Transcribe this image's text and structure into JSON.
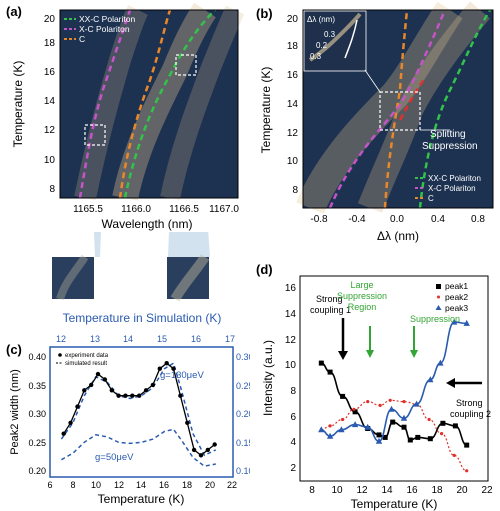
{
  "panel_a": {
    "letter": "(a)",
    "ylabel": "Temperature (K)",
    "xlabel": "Wavelength (nm)",
    "xticks": [
      "1165.5",
      "1166.0",
      "1166.5",
      "1167.0"
    ],
    "yticks": [
      "8",
      "10",
      "12",
      "14",
      "16",
      "18",
      "20"
    ],
    "legend": [
      {
        "label": "XX-C Polariton",
        "color": "#33c24a"
      },
      {
        "label": "X-C Polariton",
        "color": "#c454c8"
      },
      {
        "label": "C",
        "color": "#e8882a"
      }
    ]
  },
  "panel_b": {
    "letter": "(b)",
    "ylabel": "Temperature (K)",
    "xlabel": "Δλ (nm)",
    "xticks": [
      "-0.8",
      "-0.4",
      "0.0",
      "0.4",
      "0.8"
    ],
    "yticks": [
      "8",
      "10",
      "12",
      "14",
      "16",
      "18",
      "20"
    ],
    "inset_label": "Δλ (nm)",
    "inset_values": [
      "0.3",
      "0.2",
      "0.3"
    ],
    "annotation": "Splitting Suppression",
    "legend": [
      {
        "label": "XX-C Polariton",
        "color": "#33c24a"
      },
      {
        "label": "X-C Polariton",
        "color": "#c454c8"
      },
      {
        "label": "C",
        "color": "#e8882a"
      }
    ]
  },
  "panel_c": {
    "letter": "(c)",
    "top_axis_title": "Temperature in Simulation (K)",
    "top_ticks": [
      "12",
      "13",
      "14",
      "15",
      "16",
      "17"
    ],
    "ylabel": "Peak2 width (nm)",
    "xlabel": "Temperature (K)",
    "xticks": [
      "6",
      "8",
      "10",
      "12",
      "14",
      "16",
      "18",
      "20",
      "22"
    ],
    "yticks_left": [
      "0.20",
      "0.25",
      "0.30",
      "0.35",
      "0.40"
    ],
    "yticks_right": [
      "0.10",
      "0.15",
      "0.20",
      "0.25",
      "0.30"
    ],
    "legend": [
      "experiment data",
      "simulated result"
    ],
    "g_high": "g=130μeV",
    "g_low": "g=50μeV"
  },
  "panel_d": {
    "letter": "(d)",
    "ylabel": "Intensity (a.u.)",
    "xlabel": "Temperature (K)",
    "xticks": [
      "8",
      "10",
      "12",
      "14",
      "16",
      "18",
      "20",
      "22"
    ],
    "yticks": [
      "2",
      "4",
      "6",
      "8",
      "10",
      "12",
      "14",
      "16"
    ],
    "legend": [
      {
        "label": "peak1",
        "color": "#000000"
      },
      {
        "label": "peak2",
        "color": "#e0302a"
      },
      {
        "label": "peak3",
        "color": "#2a5bb0"
      }
    ],
    "annotations": {
      "strong1": [
        "Strong",
        "coupling 1"
      ],
      "large": [
        "Large",
        "Suppression",
        "Region"
      ],
      "suppression": "Suppression",
      "strong2": [
        "Strong",
        "coupling 2"
      ]
    }
  },
  "chart_data": [
    {
      "type": "line",
      "panel": "c",
      "xlabel": "Temperature (K)",
      "ylabel": "Peak2 width (nm)",
      "xlim": [
        6,
        22
      ],
      "ylim": [
        0.18,
        0.42
      ],
      "series": [
        {
          "name": "experiment data",
          "x": [
            7.2,
            7.8,
            8.4,
            9.0,
            9.6,
            10.2,
            10.8,
            11.4,
            12.0,
            12.6,
            13.2,
            13.8,
            14.4,
            15.0,
            15.6,
            16.2,
            16.8,
            17.4,
            18.0,
            18.6,
            19.2,
            19.8,
            20.4
          ],
          "y": [
            0.26,
            0.28,
            0.31,
            0.34,
            0.35,
            0.37,
            0.36,
            0.34,
            0.33,
            0.33,
            0.33,
            0.33,
            0.34,
            0.35,
            0.38,
            0.39,
            0.38,
            0.33,
            0.28,
            0.23,
            0.22,
            0.23,
            0.24
          ]
        },
        {
          "name": "simulated result",
          "x": [
            7,
            8,
            9,
            10,
            11,
            12,
            13,
            14,
            15,
            16,
            16.8,
            17.5,
            18.5,
            19.5,
            20.5
          ],
          "y": [
            0.25,
            0.28,
            0.33,
            0.365,
            0.355,
            0.33,
            0.325,
            0.33,
            0.345,
            0.38,
            0.39,
            0.34,
            0.26,
            0.22,
            0.23
          ]
        }
      ]
    },
    {
      "type": "scatter",
      "panel": "d",
      "xlabel": "Temperature (K)",
      "ylabel": "Intensity (a.u.)",
      "xlim": [
        7,
        22
      ],
      "ylim": [
        1,
        17
      ],
      "series": [
        {
          "name": "peak1",
          "x": [
            8.7,
            9.4,
            10.4,
            11.4,
            12.4,
            13.3,
            13.8,
            14.4,
            15.3,
            15.8,
            16.4,
            17.4,
            18.4,
            19.4,
            20.3
          ],
          "y": [
            10.2,
            9.5,
            7.6,
            6.4,
            5.1,
            4.6,
            4.4,
            5.6,
            5.2,
            4.2,
            4.4,
            4.3,
            5.5,
            5.3,
            3.8
          ]
        },
        {
          "name": "peak2",
          "x": [
            8.7,
            9.4,
            10.4,
            11.3,
            12.4,
            13.4,
            14.2,
            15.3,
            16.3,
            17.3,
            18.3,
            19.3,
            20.3
          ],
          "y": [
            5.0,
            5.3,
            5.8,
            6.6,
            7.2,
            6.9,
            7.3,
            7.2,
            7.0,
            5.8,
            4.7,
            3.0,
            1.8
          ]
        },
        {
          "name": "peak3",
          "x": [
            8.7,
            9.4,
            10.3,
            11.4,
            12.4,
            13.3,
            14.3,
            15.3,
            16.3,
            17.4,
            18.2,
            19.3,
            20.3
          ],
          "y": [
            5.0,
            4.5,
            5.0,
            5.4,
            5.2,
            4.1,
            6.6,
            5.9,
            7.0,
            8.9,
            10.2,
            13.4,
            13.3
          ]
        }
      ]
    }
  ]
}
